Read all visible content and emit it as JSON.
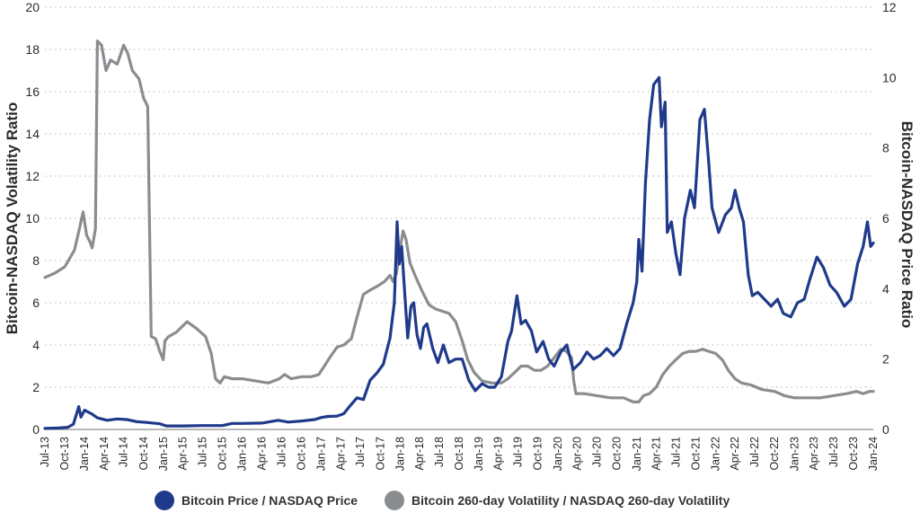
{
  "chart_data": {
    "type": "line",
    "title": "",
    "y_left_label": "Bitcoin-NASDAQ Volatility Ratio",
    "y_right_label": "Bitcoin-NASDAQ Price Ratio",
    "y_left_range": [
      0,
      20
    ],
    "y_left_ticks": [
      "0",
      "2",
      "4",
      "6",
      "8",
      "10",
      "12",
      "14",
      "16",
      "18",
      "20"
    ],
    "y_right_range": [
      0,
      12
    ],
    "y_right_ticks": [
      "0",
      "2",
      "4",
      "6",
      "8",
      "10",
      "12"
    ],
    "x_range": [
      "2013-07-01",
      "2024-01-01"
    ],
    "x_tick_labels": [
      "Jul-13",
      "Oct-13",
      "Jan-14",
      "Apr-14",
      "Jul-14",
      "Oct-14",
      "Jan-15",
      "Apr-15",
      "Jul-15",
      "Oct-15",
      "Jan-16",
      "Apr-16",
      "Jul-16",
      "Oct-16",
      "Jan-17",
      "Apr-17",
      "Jul-17",
      "Oct-17",
      "Jan-18",
      "Apr-18",
      "Jul-18",
      "Oct-18",
      "Jan-19",
      "Apr-19",
      "Jul-19",
      "Oct-19",
      "Jan-20",
      "Apr-20",
      "Jul-20",
      "Oct-20",
      "Jan-21",
      "Apr-21",
      "Jul-21",
      "Oct-21",
      "Jan-22",
      "Apr-22",
      "Jul-22",
      "Oct-22",
      "Jan-23",
      "Apr-23",
      "Jul-23",
      "Oct-23",
      "Jan-24"
    ],
    "grid": "horizontal dotted",
    "legend_position": "bottom",
    "series": [
      {
        "name": "Bitcoin 260-day Volatility /  NASDAQ 260-day Volatility",
        "axis": "left",
        "color": "#8a8d90",
        "points": [
          [
            "2013-07-01",
            7.2
          ],
          [
            "2013-08-15",
            7.4
          ],
          [
            "2013-10-01",
            7.7
          ],
          [
            "2013-11-15",
            8.5
          ],
          [
            "2013-12-10",
            9.6
          ],
          [
            "2013-12-25",
            10.3
          ],
          [
            "2014-01-10",
            9.2
          ],
          [
            "2014-01-25",
            8.9
          ],
          [
            "2014-02-05",
            8.6
          ],
          [
            "2014-02-20",
            9.5
          ],
          [
            "2014-03-01",
            18.4
          ],
          [
            "2014-03-20",
            18.2
          ],
          [
            "2014-04-10",
            17.0
          ],
          [
            "2014-05-01",
            17.5
          ],
          [
            "2014-06-01",
            17.3
          ],
          [
            "2014-07-01",
            18.2
          ],
          [
            "2014-07-20",
            17.8
          ],
          [
            "2014-08-10",
            17.0
          ],
          [
            "2014-09-10",
            16.6
          ],
          [
            "2014-10-01",
            15.7
          ],
          [
            "2014-10-20",
            15.3
          ],
          [
            "2014-11-05",
            4.4
          ],
          [
            "2014-11-25",
            4.3
          ],
          [
            "2014-12-15",
            3.7
          ],
          [
            "2014-12-31",
            3.3
          ],
          [
            "2015-01-08",
            4.2
          ],
          [
            "2015-01-25",
            4.4
          ],
          [
            "2015-03-01",
            4.6
          ],
          [
            "2015-04-20",
            5.1
          ],
          [
            "2015-06-01",
            4.8
          ],
          [
            "2015-07-15",
            4.4
          ],
          [
            "2015-08-10",
            3.6
          ],
          [
            "2015-08-30",
            2.4
          ],
          [
            "2015-09-20",
            2.2
          ],
          [
            "2015-10-10",
            2.5
          ],
          [
            "2015-11-15",
            2.4
          ],
          [
            "2016-01-01",
            2.4
          ],
          [
            "2016-03-01",
            2.3
          ],
          [
            "2016-05-01",
            2.2
          ],
          [
            "2016-06-20",
            2.4
          ],
          [
            "2016-07-15",
            2.6
          ],
          [
            "2016-08-15",
            2.4
          ],
          [
            "2016-10-01",
            2.5
          ],
          [
            "2016-11-15",
            2.5
          ],
          [
            "2016-12-20",
            2.6
          ],
          [
            "2017-01-15",
            3.0
          ],
          [
            "2017-02-15",
            3.5
          ],
          [
            "2017-03-15",
            3.9
          ],
          [
            "2017-04-15",
            4.0
          ],
          [
            "2017-05-20",
            4.3
          ],
          [
            "2017-06-15",
            5.3
          ],
          [
            "2017-07-15",
            6.4
          ],
          [
            "2017-08-15",
            6.6
          ],
          [
            "2017-09-20",
            6.8
          ],
          [
            "2017-10-20",
            7.0
          ],
          [
            "2017-11-15",
            7.3
          ],
          [
            "2017-11-30",
            7.0
          ],
          [
            "2017-12-15",
            7.4
          ],
          [
            "2018-01-01",
            8.6
          ],
          [
            "2018-01-15",
            9.4
          ],
          [
            "2018-01-28",
            9.0
          ],
          [
            "2018-02-15",
            7.9
          ],
          [
            "2018-03-15",
            7.2
          ],
          [
            "2018-04-15",
            6.5
          ],
          [
            "2018-05-15",
            5.9
          ],
          [
            "2018-06-15",
            5.7
          ],
          [
            "2018-07-15",
            5.6
          ],
          [
            "2018-08-15",
            5.5
          ],
          [
            "2018-09-15",
            5.1
          ],
          [
            "2018-10-15",
            4.2
          ],
          [
            "2018-11-10",
            3.3
          ],
          [
            "2018-12-10",
            2.7
          ],
          [
            "2019-01-15",
            2.3
          ],
          [
            "2019-03-01",
            2.2
          ],
          [
            "2019-04-15",
            2.2
          ],
          [
            "2019-05-15",
            2.4
          ],
          [
            "2019-06-15",
            2.7
          ],
          [
            "2019-07-15",
            3.0
          ],
          [
            "2019-08-15",
            3.0
          ],
          [
            "2019-09-15",
            2.8
          ],
          [
            "2019-10-15",
            2.8
          ],
          [
            "2019-11-15",
            3.0
          ],
          [
            "2019-12-15",
            3.4
          ],
          [
            "2020-01-15",
            3.8
          ],
          [
            "2020-02-10",
            3.7
          ],
          [
            "2020-03-05",
            3.4
          ],
          [
            "2020-03-15",
            2.3
          ],
          [
            "2020-03-25",
            1.7
          ],
          [
            "2020-05-01",
            1.7
          ],
          [
            "2020-07-01",
            1.6
          ],
          [
            "2020-09-01",
            1.5
          ],
          [
            "2020-11-01",
            1.5
          ],
          [
            "2020-12-15",
            1.3
          ],
          [
            "2021-01-10",
            1.3
          ],
          [
            "2021-02-01",
            1.6
          ],
          [
            "2021-03-01",
            1.7
          ],
          [
            "2021-04-01",
            2.0
          ],
          [
            "2021-05-01",
            2.6
          ],
          [
            "2021-06-01",
            3.0
          ],
          [
            "2021-07-01",
            3.3
          ],
          [
            "2021-08-01",
            3.6
          ],
          [
            "2021-09-01",
            3.7
          ],
          [
            "2021-10-01",
            3.7
          ],
          [
            "2021-11-01",
            3.8
          ],
          [
            "2021-12-01",
            3.7
          ],
          [
            "2022-01-01",
            3.6
          ],
          [
            "2022-02-01",
            3.3
          ],
          [
            "2022-03-01",
            2.8
          ],
          [
            "2022-04-01",
            2.4
          ],
          [
            "2022-05-01",
            2.2
          ],
          [
            "2022-06-15",
            2.1
          ],
          [
            "2022-08-01",
            1.9
          ],
          [
            "2022-10-01",
            1.8
          ],
          [
            "2022-11-15",
            1.6
          ],
          [
            "2023-01-01",
            1.5
          ],
          [
            "2023-03-01",
            1.5
          ],
          [
            "2023-05-01",
            1.5
          ],
          [
            "2023-07-01",
            1.6
          ],
          [
            "2023-09-01",
            1.7
          ],
          [
            "2023-10-15",
            1.8
          ],
          [
            "2023-11-15",
            1.7
          ],
          [
            "2023-12-15",
            1.8
          ],
          [
            "2024-01-01",
            1.8
          ]
        ]
      },
      {
        "name": "Bitcoin Price / NASDAQ Price",
        "axis": "right",
        "color": "#1f3a8a",
        "points": [
          [
            "2013-07-01",
            0.03
          ],
          [
            "2013-09-01",
            0.04
          ],
          [
            "2013-10-15",
            0.06
          ],
          [
            "2013-11-10",
            0.15
          ],
          [
            "2013-11-25",
            0.45
          ],
          [
            "2013-12-05",
            0.65
          ],
          [
            "2013-12-15",
            0.35
          ],
          [
            "2014-01-01",
            0.55
          ],
          [
            "2014-01-15",
            0.5
          ],
          [
            "2014-02-01",
            0.45
          ],
          [
            "2014-03-01",
            0.33
          ],
          [
            "2014-04-15",
            0.26
          ],
          [
            "2014-06-01",
            0.3
          ],
          [
            "2014-07-15",
            0.28
          ],
          [
            "2014-09-01",
            0.22
          ],
          [
            "2014-10-15",
            0.2
          ],
          [
            "2014-12-15",
            0.16
          ],
          [
            "2015-01-15",
            0.1
          ],
          [
            "2015-04-01",
            0.1
          ],
          [
            "2015-07-01",
            0.11
          ],
          [
            "2015-10-01",
            0.11
          ],
          [
            "2015-11-15",
            0.17
          ],
          [
            "2016-01-01",
            0.17
          ],
          [
            "2016-04-01",
            0.18
          ],
          [
            "2016-06-15",
            0.26
          ],
          [
            "2016-08-01",
            0.21
          ],
          [
            "2016-10-01",
            0.24
          ],
          [
            "2016-12-01",
            0.28
          ],
          [
            "2017-01-01",
            0.34
          ],
          [
            "2017-02-01",
            0.37
          ],
          [
            "2017-03-15",
            0.38
          ],
          [
            "2017-04-15",
            0.45
          ],
          [
            "2017-05-15",
            0.68
          ],
          [
            "2017-06-15",
            0.9
          ],
          [
            "2017-07-15",
            0.85
          ],
          [
            "2017-08-15",
            1.4
          ],
          [
            "2017-09-15",
            1.6
          ],
          [
            "2017-10-15",
            1.85
          ],
          [
            "2017-11-15",
            2.6
          ],
          [
            "2017-12-05",
            3.6
          ],
          [
            "2017-12-18",
            5.9
          ],
          [
            "2017-12-28",
            4.7
          ],
          [
            "2018-01-08",
            5.2
          ],
          [
            "2018-01-20",
            4.1
          ],
          [
            "2018-02-05",
            2.6
          ],
          [
            "2018-02-20",
            3.5
          ],
          [
            "2018-03-05",
            3.6
          ],
          [
            "2018-03-20",
            2.7
          ],
          [
            "2018-04-05",
            2.3
          ],
          [
            "2018-04-20",
            2.9
          ],
          [
            "2018-05-05",
            3.0
          ],
          [
            "2018-06-01",
            2.3
          ],
          [
            "2018-06-25",
            1.9
          ],
          [
            "2018-07-20",
            2.4
          ],
          [
            "2018-08-15",
            1.9
          ],
          [
            "2018-09-15",
            2.0
          ],
          [
            "2018-10-15",
            2.0
          ],
          [
            "2018-11-15",
            1.4
          ],
          [
            "2018-12-15",
            1.1
          ],
          [
            "2019-01-15",
            1.3
          ],
          [
            "2019-02-15",
            1.2
          ],
          [
            "2019-03-15",
            1.2
          ],
          [
            "2019-04-15",
            1.5
          ],
          [
            "2019-05-15",
            2.5
          ],
          [
            "2019-06-01",
            2.8
          ],
          [
            "2019-06-26",
            3.8
          ],
          [
            "2019-07-15",
            3.0
          ],
          [
            "2019-08-05",
            3.1
          ],
          [
            "2019-09-01",
            2.8
          ],
          [
            "2019-09-25",
            2.2
          ],
          [
            "2019-10-25",
            2.5
          ],
          [
            "2019-11-20",
            2.0
          ],
          [
            "2019-12-15",
            1.8
          ],
          [
            "2020-01-15",
            2.2
          ],
          [
            "2020-02-12",
            2.4
          ],
          [
            "2020-03-12",
            1.7
          ],
          [
            "2020-04-15",
            1.9
          ],
          [
            "2020-05-15",
            2.2
          ],
          [
            "2020-06-15",
            2.0
          ],
          [
            "2020-07-15",
            2.1
          ],
          [
            "2020-08-15",
            2.3
          ],
          [
            "2020-09-15",
            2.1
          ],
          [
            "2020-10-15",
            2.3
          ],
          [
            "2020-11-15",
            3.0
          ],
          [
            "2020-12-15",
            3.6
          ],
          [
            "2021-01-01",
            4.2
          ],
          [
            "2021-01-10",
            5.4
          ],
          [
            "2021-01-25",
            4.5
          ],
          [
            "2021-02-10",
            7.0
          ],
          [
            "2021-03-01",
            8.8
          ],
          [
            "2021-03-20",
            9.8
          ],
          [
            "2021-04-14",
            10.0
          ],
          [
            "2021-04-25",
            8.6
          ],
          [
            "2021-05-12",
            9.3
          ],
          [
            "2021-05-22",
            5.6
          ],
          [
            "2021-06-10",
            5.9
          ],
          [
            "2021-07-01",
            5.0
          ],
          [
            "2021-07-20",
            4.4
          ],
          [
            "2021-08-10",
            6.0
          ],
          [
            "2021-09-06",
            6.8
          ],
          [
            "2021-09-25",
            6.3
          ],
          [
            "2021-10-20",
            8.8
          ],
          [
            "2021-11-10",
            9.1
          ],
          [
            "2021-11-30",
            7.6
          ],
          [
            "2021-12-15",
            6.3
          ],
          [
            "2022-01-15",
            5.6
          ],
          [
            "2022-02-15",
            6.1
          ],
          [
            "2022-03-15",
            6.3
          ],
          [
            "2022-04-01",
            6.8
          ],
          [
            "2022-04-20",
            6.3
          ],
          [
            "2022-05-10",
            5.9
          ],
          [
            "2022-06-01",
            4.4
          ],
          [
            "2022-06-20",
            3.8
          ],
          [
            "2022-07-15",
            3.9
          ],
          [
            "2022-08-15",
            3.7
          ],
          [
            "2022-09-15",
            3.5
          ],
          [
            "2022-10-15",
            3.7
          ],
          [
            "2022-11-10",
            3.3
          ],
          [
            "2022-12-15",
            3.2
          ],
          [
            "2023-01-15",
            3.6
          ],
          [
            "2023-02-15",
            3.7
          ],
          [
            "2023-03-15",
            4.3
          ],
          [
            "2023-04-15",
            4.9
          ],
          [
            "2023-05-15",
            4.6
          ],
          [
            "2023-06-15",
            4.1
          ],
          [
            "2023-07-15",
            3.9
          ],
          [
            "2023-08-20",
            3.5
          ],
          [
            "2023-09-20",
            3.7
          ],
          [
            "2023-10-20",
            4.7
          ],
          [
            "2023-11-15",
            5.2
          ],
          [
            "2023-12-05",
            5.9
          ],
          [
            "2023-12-20",
            5.2
          ],
          [
            "2024-01-01",
            5.3
          ]
        ]
      }
    ]
  },
  "legend": {
    "items": [
      {
        "label": "Bitcoin Price / NASDAQ Price",
        "color": "#1f3a8a"
      },
      {
        "label": "Bitcoin 260-day Volatility /  NASDAQ 260-day Volatility",
        "color": "#8a8d90"
      }
    ]
  }
}
